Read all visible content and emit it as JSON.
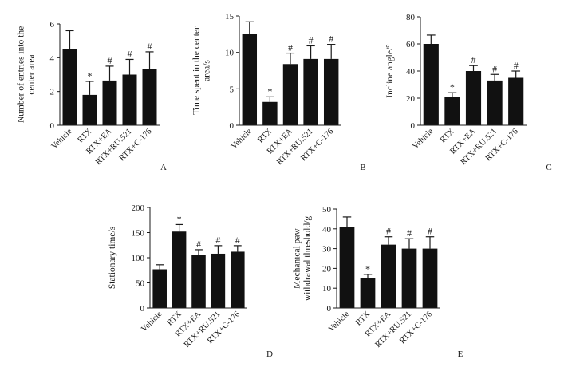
{
  "colors": {
    "bar": "#111111",
    "axis": "#1a1a1a",
    "text": "#1a1a1a",
    "background": "#ffffff"
  },
  "chart_data": [
    {
      "type": "bar",
      "panel": "A",
      "ylabel_lines": [
        "Number of entries into the",
        "center area"
      ],
      "categories": [
        "Vehicle",
        "RTX",
        "RTX+EA",
        "RTX+RU.521",
        "RTX+C-176"
      ],
      "values": [
        4.5,
        1.8,
        2.65,
        3.0,
        3.35
      ],
      "errors": [
        1.1,
        0.8,
        0.85,
        0.9,
        1.0
      ],
      "annotations": [
        "",
        "*",
        "#",
        "#",
        "#"
      ],
      "ylim": [
        0,
        6
      ],
      "yticks": [
        0,
        2,
        4,
        6
      ]
    },
    {
      "type": "bar",
      "panel": "B",
      "ylabel_lines": [
        "Time spent in the center",
        "area/s"
      ],
      "categories": [
        "Vehicle",
        "RTX",
        "RTX+EA",
        "RTX+RU.521",
        "RTX+C-176"
      ],
      "values": [
        12.5,
        3.2,
        8.4,
        9.1,
        9.1
      ],
      "errors": [
        1.7,
        0.7,
        1.5,
        1.8,
        2.0
      ],
      "annotations": [
        "",
        "*",
        "#",
        "#",
        "#"
      ],
      "ylim": [
        0,
        15
      ],
      "yticks": [
        0,
        5,
        10,
        15
      ]
    },
    {
      "type": "bar",
      "panel": "C",
      "ylabel_lines": [
        "Incline angle/°"
      ],
      "categories": [
        "Vehicle",
        "RTX",
        "RTX+EA",
        "RTX+RU.521",
        "RTX+C-176"
      ],
      "values": [
        60,
        21,
        40,
        33,
        35
      ],
      "errors": [
        6.5,
        3,
        4,
        4.5,
        5
      ],
      "annotations": [
        "",
        "*",
        "#",
        "#",
        "#"
      ],
      "ylim": [
        0,
        80
      ],
      "yticks": [
        0,
        20,
        40,
        60,
        80
      ]
    },
    {
      "type": "bar",
      "panel": "D",
      "ylabel_lines": [
        "Stationary time/s"
      ],
      "categories": [
        "Vehicle",
        "RTX",
        "RTX+EA",
        "RTX+RU.521",
        "RTX+C-176"
      ],
      "values": [
        77,
        152,
        105,
        108,
        112
      ],
      "errors": [
        9,
        14,
        11,
        16,
        12
      ],
      "annotations": [
        "",
        "*",
        "#",
        "#",
        "#"
      ],
      "ylim": [
        0,
        200
      ],
      "yticks": [
        0,
        50,
        100,
        150,
        200
      ]
    },
    {
      "type": "bar",
      "panel": "E",
      "ylabel_lines": [
        "Mechanical paw",
        "withdrawal threshold/g"
      ],
      "categories": [
        "Vehicle",
        "RTX",
        "RTX+EA",
        "RTX+RU.521",
        "RTX+C-176"
      ],
      "values": [
        41,
        15,
        32,
        30,
        30
      ],
      "errors": [
        5,
        2,
        4,
        5,
        6
      ],
      "annotations": [
        "",
        "*",
        "#",
        "#",
        "#"
      ],
      "ylim": [
        0,
        50
      ],
      "yticks": [
        0,
        10,
        20,
        30,
        40,
        50
      ]
    }
  ]
}
